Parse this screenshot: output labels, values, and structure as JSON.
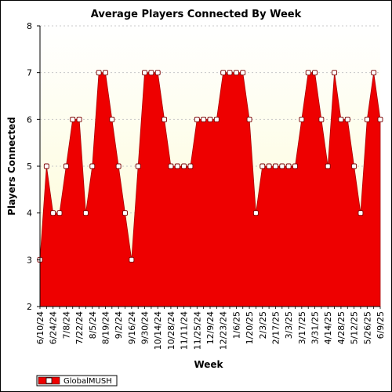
{
  "chart_data": {
    "type": "area",
    "title": "Average Players Connected By Week",
    "xlabel": "Week",
    "ylabel": "Players Connected",
    "ylim": [
      2,
      8
    ],
    "yticks": [
      "2",
      "3",
      "4",
      "5",
      "6",
      "7",
      "8"
    ],
    "xtick_labels": [
      "6/10/24",
      "6/24/24",
      "7/8/24",
      "7/22/24",
      "8/5/24",
      "8/19/24",
      "9/2/24",
      "9/16/24",
      "9/30/24",
      "10/14/24",
      "10/28/24",
      "11/11/24",
      "11/25/24",
      "12/9/24",
      "12/23/24",
      "1/6/25",
      "1/20/25",
      "2/3/25",
      "2/17/25",
      "3/3/25",
      "3/17/25",
      "3/31/25",
      "4/14/25",
      "4/28/25",
      "5/12/25",
      "5/26/25",
      "6/9/25"
    ],
    "grid": true,
    "legend_position": "bottom-left",
    "series": [
      {
        "name": "GlobalMUSH",
        "color": "#ee0000",
        "x": [
          "6/10/24",
          "6/17/24",
          "6/24/24",
          "7/1/24",
          "7/8/24",
          "7/15/24",
          "7/22/24",
          "7/29/24",
          "8/5/24",
          "8/12/24",
          "8/19/24",
          "8/26/24",
          "9/2/24",
          "9/9/24",
          "9/16/24",
          "9/23/24",
          "9/30/24",
          "10/7/24",
          "10/14/24",
          "10/21/24",
          "10/28/24",
          "11/4/24",
          "11/11/24",
          "11/18/24",
          "11/25/24",
          "12/2/24",
          "12/9/24",
          "12/16/24",
          "12/23/24",
          "12/30/24",
          "1/6/25",
          "1/13/25",
          "1/20/25",
          "1/27/25",
          "2/3/25",
          "2/10/25",
          "2/17/25",
          "2/24/25",
          "3/3/25",
          "3/10/25",
          "3/17/25",
          "3/24/25",
          "3/31/25",
          "4/7/25",
          "4/14/25",
          "4/21/25",
          "4/28/25",
          "5/5/25",
          "5/12/25",
          "5/19/25",
          "5/26/25",
          "6/2/25",
          "6/9/25"
        ],
        "values": [
          3,
          5,
          4,
          4,
          5,
          6,
          6,
          4,
          5,
          7,
          7,
          6,
          5,
          4,
          3,
          5,
          7,
          7,
          7,
          6,
          5,
          5,
          5,
          5,
          6,
          6,
          6,
          6,
          7,
          7,
          7,
          7,
          6,
          4,
          5,
          5,
          5,
          5,
          5,
          5,
          6,
          7,
          7,
          6,
          5,
          7,
          6,
          6,
          5,
          4,
          6,
          7,
          6
        ]
      }
    ]
  },
  "colors": {
    "plot_background_top": "#ffffff",
    "plot_background_bottom": "#fdfbd0",
    "area_fill": "#ee0000",
    "marker_fill": "#ffffff",
    "grid": "#c8c8c8"
  }
}
